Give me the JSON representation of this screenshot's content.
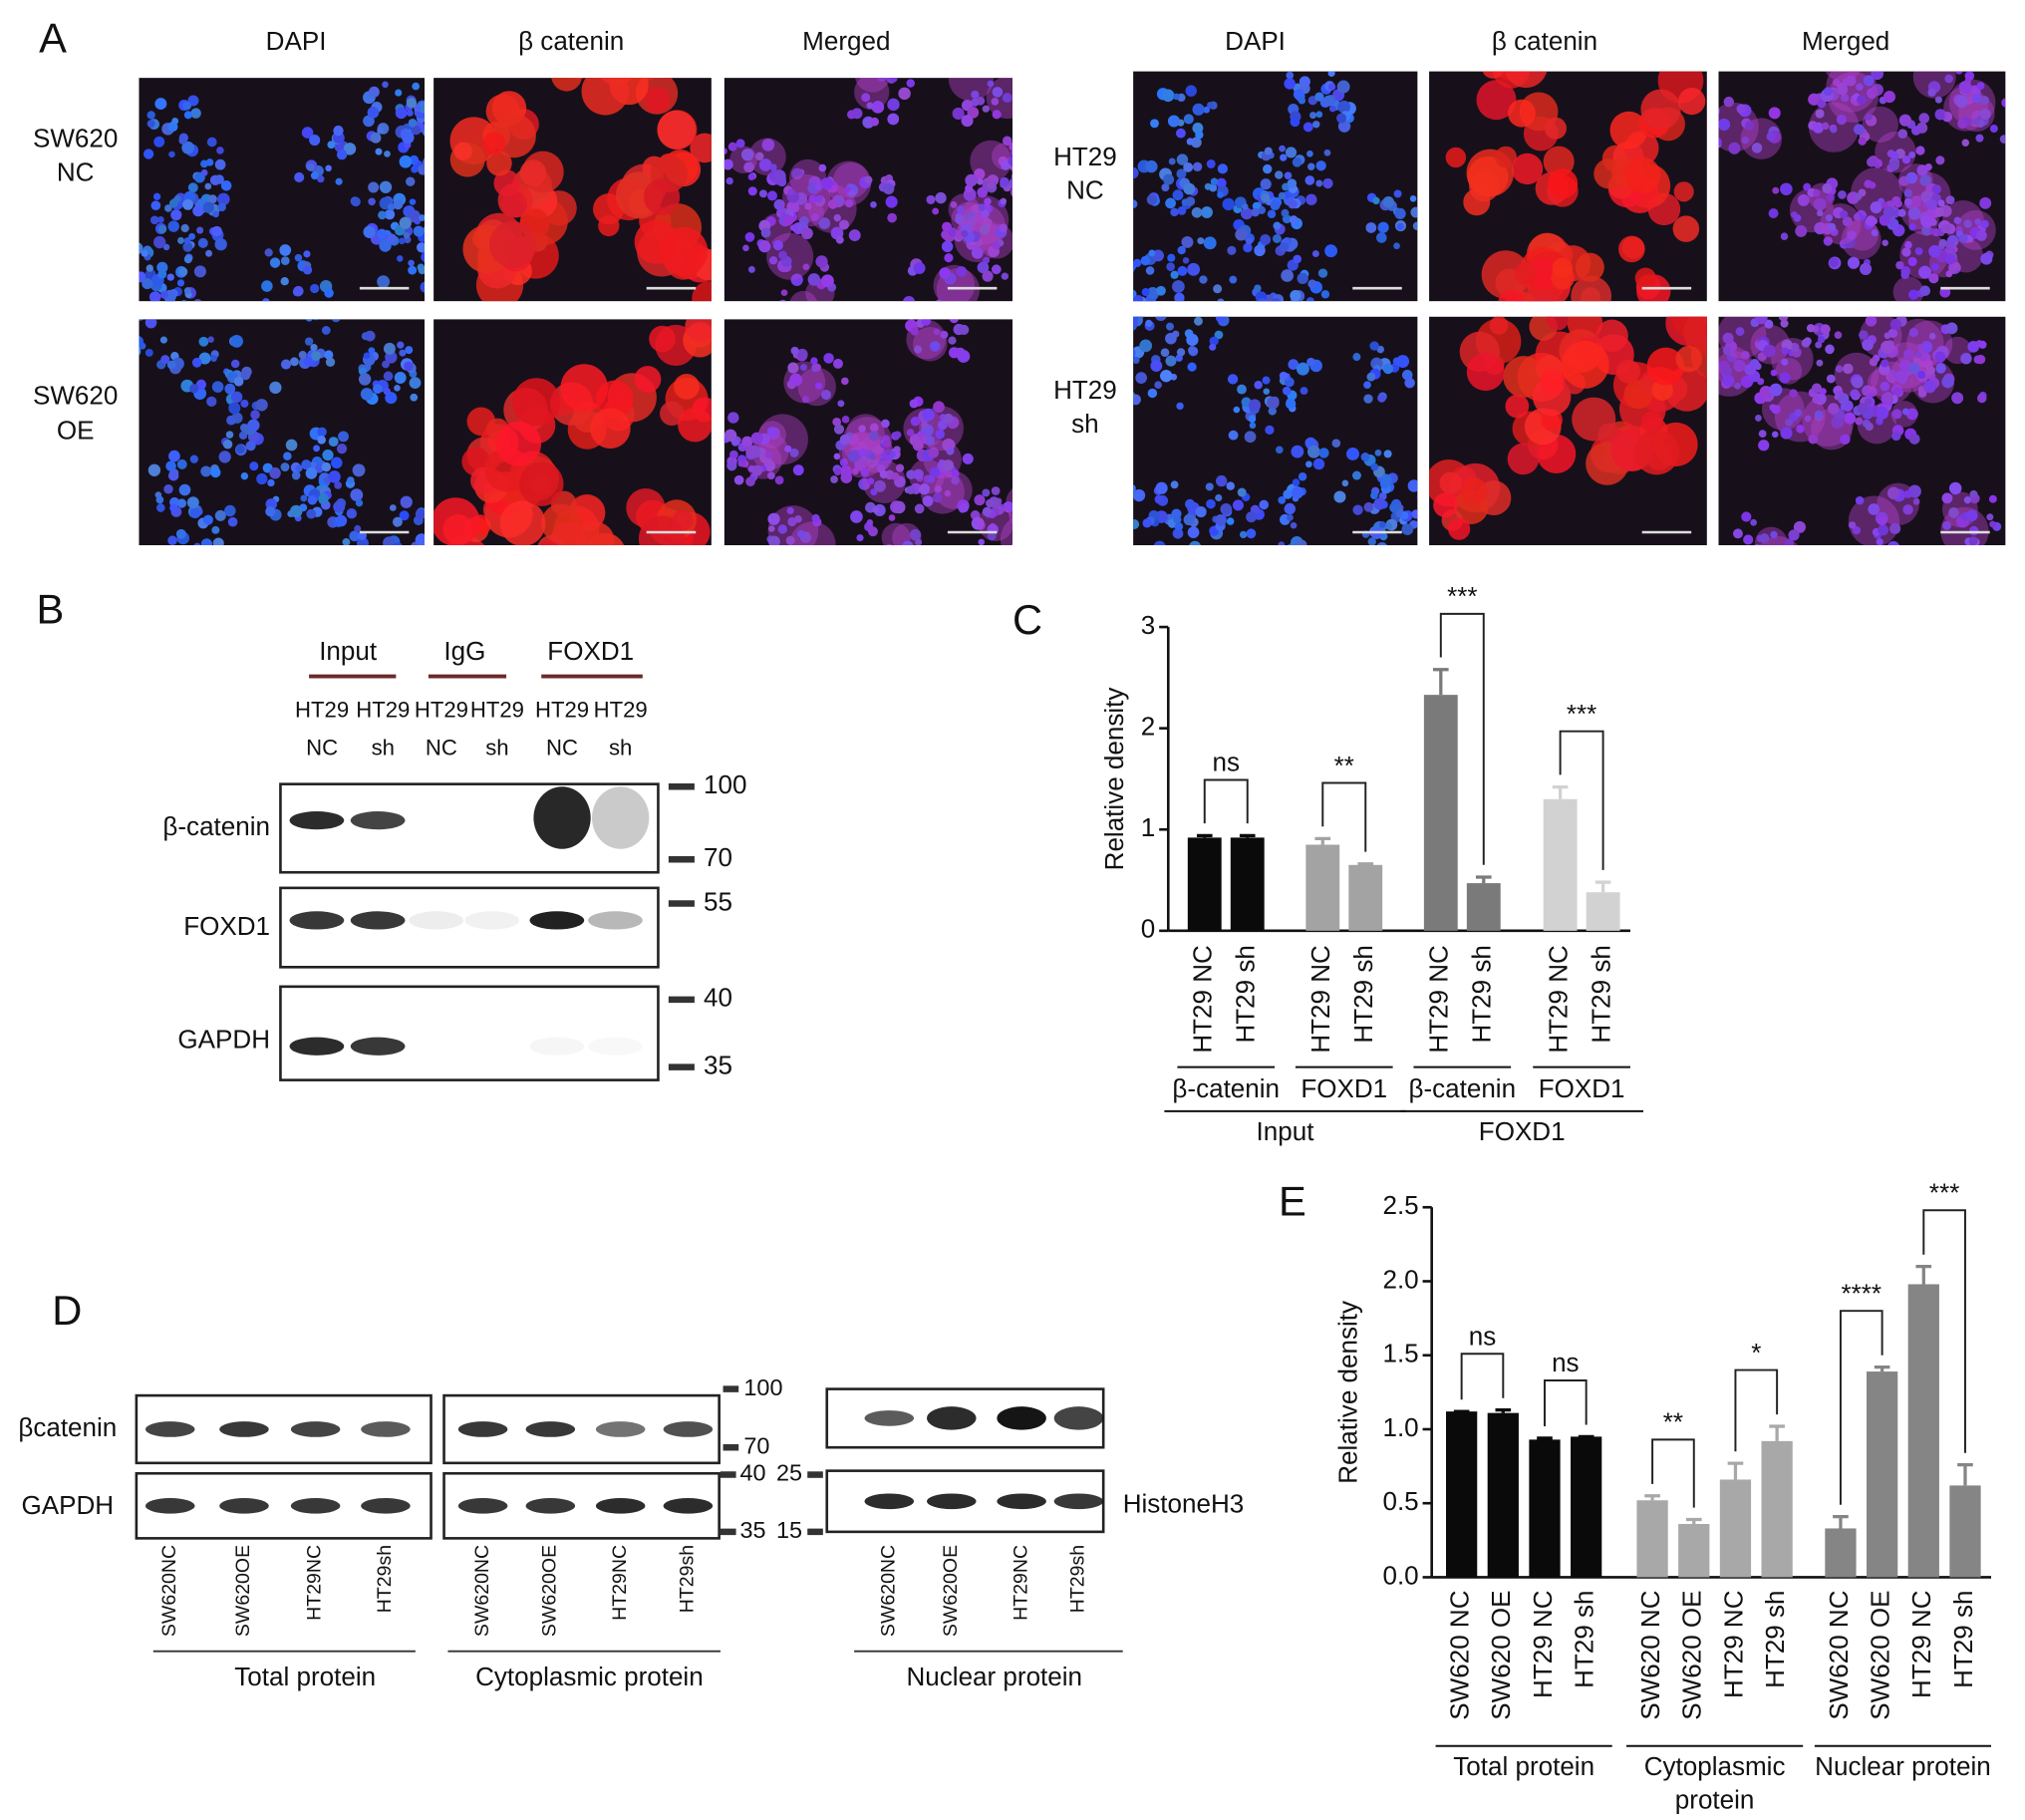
{
  "panel_labels": {
    "a": "A",
    "b": "B",
    "c": "C",
    "d": "D",
    "e": "E"
  },
  "panel_a": {
    "groups": [
      {
        "headers": [
          "DAPI",
          "β catenin",
          "Merged"
        ],
        "rows": [
          [
            "SW620",
            "NC"
          ],
          [
            "SW620",
            "OE"
          ]
        ]
      },
      {
        "headers": [
          "DAPI",
          "β catenin",
          "Merged"
        ],
        "rows": [
          [
            "HT29",
            "NC"
          ],
          [
            "HT29",
            "sh"
          ]
        ]
      }
    ]
  },
  "panel_b": {
    "headers": [
      "Input",
      "IgG",
      "FOXD1"
    ],
    "lanes": [
      [
        "HT29",
        "NC"
      ],
      [
        "HT29",
        "sh"
      ],
      [
        "HT29",
        "NC"
      ],
      [
        "HT29",
        "sh"
      ],
      [
        "HT29",
        "NC"
      ],
      [
        "HT29",
        "sh"
      ]
    ],
    "rows": [
      "β-catenin",
      "FOXD1",
      "GAPDH"
    ],
    "markers": [
      100,
      70,
      55,
      40,
      35
    ]
  },
  "panel_d": {
    "rows": [
      "βcatenin",
      "GAPDH"
    ],
    "nuclear_row": "HistoneH3",
    "groups": [
      {
        "label": "Total protein",
        "lanes": [
          "SW620NC",
          "SW620OE",
          "HT29NC",
          "HT29sh"
        ]
      },
      {
        "label": "Cytoplasmic protein",
        "lanes": [
          "SW620NC",
          "SW620OE",
          "HT29NC",
          "HT29sh"
        ]
      },
      {
        "label": "Nuclear protein",
        "lanes": [
          "SW620NC",
          "SW620OE",
          "HT29NC",
          "HT29sh"
        ]
      }
    ],
    "markers_left": [
      100,
      70,
      40,
      35
    ],
    "markers_right": [
      25,
      15
    ]
  },
  "chart_data": [
    {
      "type": "bar",
      "y_label": "Relative density",
      "categories": [
        "HT29 NC",
        "HT29 sh",
        "HT29 NC",
        "HT29 sh",
        "HT29 NC",
        "HT29 sh",
        "HT29 NC",
        "HT29 sh"
      ],
      "values": [
        0.92,
        0.92,
        0.85,
        0.65,
        2.33,
        0.47,
        1.3,
        0.38
      ],
      "errors": [
        0.02,
        0.02,
        0.06,
        0.01,
        0.25,
        0.06,
        0.12,
        0.1
      ],
      "colors": [
        "#0a0a0a",
        "#0a0a0a",
        "#a3a3a3",
        "#a3a3a3",
        "#7a7a7a",
        "#7a7a7a",
        "#d2d2d2",
        "#d2d2d2"
      ],
      "groups": [
        "β-catenin",
        "FOXD1",
        "β-catenin",
        "FOXD1"
      ],
      "super_groups": [
        "Input",
        "FOXD1"
      ],
      "annotations": [
        "ns",
        "**",
        "***",
        "***"
      ],
      "ylim": [
        0,
        3
      ],
      "yticks": [
        0,
        1,
        2,
        3
      ]
    },
    {
      "type": "bar",
      "y_label": "Relative density",
      "categories": [
        "SW620 NC",
        "SW620 OE",
        "HT29 NC",
        "HT29 sh",
        "SW620 NC",
        "SW620 OE",
        "HT29 NC",
        "HT29 sh",
        "SW620 NC",
        "SW620 OE",
        "HT29 NC",
        "HT29 sh"
      ],
      "values": [
        1.12,
        1.11,
        0.93,
        0.95,
        0.52,
        0.36,
        0.66,
        0.92,
        0.33,
        1.39,
        1.98,
        0.62
      ],
      "errors": [
        0,
        0.02,
        0.01,
        0,
        0.03,
        0.03,
        0.11,
        0.1,
        0.08,
        0.03,
        0.12,
        0.14
      ],
      "colors": [
        "#0a0a0a",
        "#0a0a0a",
        "#0a0a0a",
        "#0a0a0a",
        "#a8a8a8",
        "#a8a8a8",
        "#a8a8a8",
        "#a8a8a8",
        "#858585",
        "#858585",
        "#858585",
        "#858585"
      ],
      "groups": [
        [
          "Total protein"
        ],
        [
          "Cytoplasmic",
          "protein"
        ],
        [
          "Nuclear protein"
        ]
      ],
      "annotations": [
        "ns",
        "ns",
        "**",
        "*",
        "****",
        "***"
      ],
      "ylim": [
        0,
        2.5
      ],
      "yticks": [
        {
          "value": 0,
          "label": "0.0"
        },
        {
          "value": 0.5,
          "label": "0.5"
        },
        {
          "value": 1,
          "label": "1.0"
        },
        {
          "value": 1.5,
          "label": "1.5"
        },
        {
          "value": 2,
          "label": "2.0"
        },
        {
          "value": 2.5,
          "label": "2.5"
        }
      ]
    }
  ]
}
